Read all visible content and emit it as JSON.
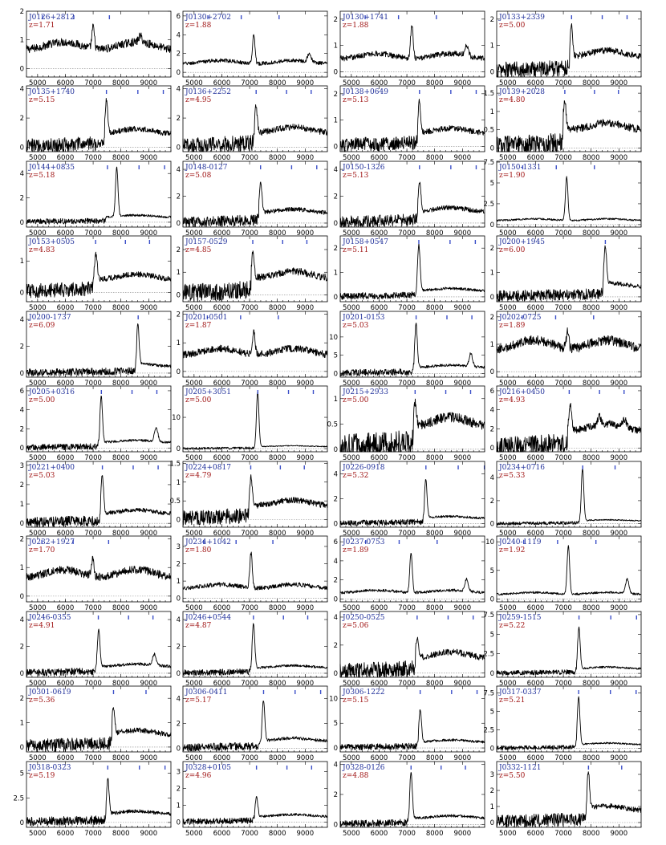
{
  "chart_data": {
    "type": "line",
    "xlim": [
      4600,
      9800
    ],
    "x_ticks": [
      5000,
      6000,
      7000,
      8000,
      9000
    ],
    "grid": false,
    "line_color": "#000000",
    "zero_line": "dotted",
    "colors": {
      "name": "#1f2f9a",
      "redshift": "#a01515",
      "line_markers": "#3b4fc8"
    },
    "panels": [
      {
        "name": "J0126+2812",
        "z": "z=1.71",
        "zval": 1.71,
        "ylim": [
          -0.3,
          2.0
        ],
        "yticks": [
          0,
          1,
          2
        ],
        "emission": [
          7000,
          8700
        ],
        "peak": 1.55,
        "cont": 0.8
      },
      {
        "name": "J0130+2702",
        "z": "z=1.88",
        "zval": 1.88,
        "ylim": [
          -0.5,
          6.5
        ],
        "yticks": [
          0,
          2,
          4,
          6
        ],
        "emission": [
          7150,
          9150
        ],
        "peak": 4.2,
        "cont": 1.1
      },
      {
        "name": "J0130+1741",
        "z": "z=1.88",
        "zval": 1.88,
        "ylim": [
          -0.2,
          2.3
        ],
        "yticks": [
          0,
          1,
          2
        ],
        "emission": [
          7180,
          9150
        ],
        "peak": 1.9,
        "cont": 0.6
      },
      {
        "name": "J0133+2339",
        "z": "z=5.00",
        "zval": 5.0,
        "ylim": [
          -0.2,
          2.3
        ],
        "yticks": [
          0,
          1,
          2
        ],
        "emission": [
          7290
        ],
        "peak": 1.9,
        "cont": 0.7
      },
      {
        "name": "J0135+1740",
        "z": "z=5.15",
        "zval": 5.15,
        "ylim": [
          -0.3,
          4.2
        ],
        "yticks": [
          0,
          2,
          4
        ],
        "emission": [
          7480
        ],
        "peak": 3.4,
        "cont": 1.1
      },
      {
        "name": "J0136+2252",
        "z": "z=4.95",
        "zval": 4.95,
        "ylim": [
          -0.3,
          4.2
        ],
        "yticks": [
          0,
          2,
          4
        ],
        "emission": [
          7230
        ],
        "peak": 3.0,
        "cont": 1.2
      },
      {
        "name": "J0138+0649",
        "z": "z=5.13",
        "zval": 5.13,
        "ylim": [
          -0.2,
          2.3
        ],
        "yticks": [
          0,
          1,
          2
        ],
        "emission": [
          7450
        ],
        "peak": 1.8,
        "cont": 0.6
      },
      {
        "name": "J0139+2028",
        "z": "z=4.80",
        "zval": 4.8,
        "ylim": [
          -0.1,
          1.7
        ],
        "yticks": [
          0.0,
          0.5,
          1.0,
          1.5
        ],
        "emission": [
          7050
        ],
        "peak": 1.4,
        "cont": 0.6
      },
      {
        "name": "J0144+0835",
        "z": "z=5.18",
        "zval": 5.18,
        "ylim": [
          -0.4,
          5.0
        ],
        "yticks": [
          0,
          2,
          4
        ],
        "emission": [
          7850
        ],
        "peak": 4.5,
        "cont": 0.5
      },
      {
        "name": "J0148-0127",
        "z": "z=5.08",
        "zval": 5.08,
        "ylim": [
          -0.3,
          4.6
        ],
        "yticks": [
          0,
          2,
          4
        ],
        "emission": [
          7400
        ],
        "peak": 3.2,
        "cont": 0.9
      },
      {
        "name": "J0150-1326",
        "z": "z=5.13",
        "zval": 5.13,
        "ylim": [
          -0.3,
          4.6
        ],
        "yticks": [
          0,
          2,
          4
        ],
        "emission": [
          7460
        ],
        "peak": 3.2,
        "cont": 1.0
      },
      {
        "name": "J0150-1331",
        "z": "z=1.90",
        "zval": 1.9,
        "ylim": [
          -0.3,
          7.6
        ],
        "yticks": [
          0.0,
          2.5,
          5.0,
          7.5
        ],
        "emission": [
          7120
        ],
        "peak": 5.8,
        "cont": 0.6
      },
      {
        "name": "J0153+0505",
        "z": "z=4.83",
        "zval": 4.83,
        "ylim": [
          -0.3,
          1.8
        ],
        "yticks": [
          0,
          1
        ],
        "emission": [
          7100
        ],
        "peak": 1.3,
        "cont": 0.5
      },
      {
        "name": "J0157-0529",
        "z": "z=4.85",
        "zval": 4.85,
        "ylim": [
          -0.3,
          2.6
        ],
        "yticks": [
          0,
          1,
          2
        ],
        "emission": [
          7120
        ],
        "peak": 2.0,
        "cont": 0.9
      },
      {
        "name": "J0158+0547",
        "z": "z=5.11",
        "zval": 5.11,
        "ylim": [
          -0.2,
          2.5
        ],
        "yticks": [
          0,
          1,
          2
        ],
        "emission": [
          7430
        ],
        "peak": 2.2,
        "cont": 0.3
      },
      {
        "name": "J0200+1945",
        "z": "z=6.00",
        "zval": 6.0,
        "ylim": [
          -0.2,
          2.5
        ],
        "yticks": [
          0,
          1,
          2
        ],
        "emission": [
          8510
        ],
        "peak": 2.0,
        "cont": 0.5
      },
      {
        "name": "J0200-1737",
        "z": "z=6.09",
        "zval": 6.09,
        "ylim": [
          -0.3,
          4.6
        ],
        "yticks": [
          0,
          2,
          4
        ],
        "emission": [
          8610
        ],
        "peak": 3.5,
        "cont": 0.6
      },
      {
        "name": "J0201-0501",
        "z": "z=1.87",
        "zval": 1.87,
        "ylim": [
          -0.2,
          2.1
        ],
        "yticks": [
          0,
          1,
          2
        ],
        "emission": [
          7150
        ],
        "peak": 1.5,
        "cont": 0.7
      },
      {
        "name": "J0201-0153",
        "z": "z=5.03",
        "zval": 5.03,
        "ylim": [
          -1,
          17
        ],
        "yticks": [
          0,
          5,
          10
        ],
        "emission": [
          7330,
          9300
        ],
        "peak": 14.0,
        "cont": 2.0
      },
      {
        "name": "J0202-0725",
        "z": "z=1.89",
        "zval": 1.89,
        "ylim": [
          -0.2,
          2.2
        ],
        "yticks": [
          0,
          1,
          2
        ],
        "emission": [
          7150
        ],
        "peak": 1.6,
        "cont": 1.0
      },
      {
        "name": "J0205+0316",
        "z": "z=5.00",
        "zval": 5.0,
        "ylim": [
          -0.4,
          6.5
        ],
        "yticks": [
          0,
          2,
          4,
          6
        ],
        "emission": [
          7290,
          9270
        ],
        "peak": 5.5,
        "cont": 0.7
      },
      {
        "name": "J0205+3051",
        "z": "z=5.00",
        "zval": 5.0,
        "ylim": [
          -1,
          20
        ],
        "yticks": [
          0,
          10
        ],
        "emission": [
          7290
        ],
        "peak": 18,
        "cont": 0.8
      },
      {
        "name": "J0215+2933",
        "z": "z=5.00",
        "zval": 5.0,
        "ylim": [
          -0.05,
          1.25
        ],
        "yticks": [
          0.0,
          0.5,
          1.0
        ],
        "emission": [
          7300
        ],
        "peak": 1.0,
        "cont": 0.55
      },
      {
        "name": "J0216+0450",
        "z": "z=4.93",
        "zval": 4.93,
        "ylim": [
          -0.4,
          6.5
        ],
        "yticks": [
          0,
          2,
          4,
          6
        ],
        "emission": [
          7250,
          8300,
          9200
        ],
        "peak": 5.0,
        "cont": 2.2
      },
      {
        "name": "J0221+0400",
        "z": "z=5.03",
        "zval": 5.03,
        "ylim": [
          -0.2,
          3.2
        ],
        "yticks": [
          0,
          1,
          2,
          3
        ],
        "emission": [
          7330
        ],
        "peak": 2.6,
        "cont": 0.6
      },
      {
        "name": "J0224+0817",
        "z": "z=4.79",
        "zval": 4.79,
        "ylim": [
          -0.2,
          1.55
        ],
        "yticks": [
          0.0,
          0.5,
          1.0,
          1.5
        ],
        "emission": [
          7050
        ],
        "peak": 1.2,
        "cont": 0.45
      },
      {
        "name": "J0226-0918",
        "z": "z=5.32",
        "zval": 5.32,
        "ylim": [
          -0.3,
          5.0
        ],
        "yticks": [
          0,
          2,
          4
        ],
        "emission": [
          7680
        ],
        "peak": 3.6,
        "cont": 0.5
      },
      {
        "name": "J0234+0716",
        "z": "z=5.33",
        "zval": 5.33,
        "ylim": [
          -0.3,
          5.4
        ],
        "yticks": [
          0,
          2,
          4
        ],
        "emission": [
          7690
        ],
        "peak": 4.8,
        "cont": 0.3
      },
      {
        "name": "J0232+1927",
        "z": "z=1.70",
        "zval": 1.7,
        "ylim": [
          -0.2,
          2.1
        ],
        "yticks": [
          0,
          1,
          2
        ],
        "emission": [
          6980
        ],
        "peak": 1.4,
        "cont": 0.8
      },
      {
        "name": "J0234+1042",
        "z": "z=1.80",
        "zval": 1.8,
        "ylim": [
          -0.2,
          3.6
        ],
        "yticks": [
          0,
          1,
          2,
          3
        ],
        "emission": [
          7050
        ],
        "peak": 2.7,
        "cont": 0.7
      },
      {
        "name": "J0237-0753",
        "z": "z=1.89",
        "zval": 1.89,
        "ylim": [
          -0.3,
          6.6
        ],
        "yticks": [
          0,
          2,
          4,
          6
        ],
        "emission": [
          7150,
          9150
        ],
        "peak": 5.0,
        "cont": 0.8
      },
      {
        "name": "J0240-1119",
        "z": "z=1.92",
        "zval": 1.92,
        "ylim": [
          -0.5,
          11
        ],
        "yticks": [
          0,
          5,
          10
        ],
        "emission": [
          7180,
          9300
        ],
        "peak": 9.5,
        "cont": 1.0
      },
      {
        "name": "J0246-0355",
        "z": "z=4.91",
        "zval": 4.91,
        "ylim": [
          -0.3,
          4.6
        ],
        "yticks": [
          0,
          2,
          4
        ],
        "emission": [
          7200,
          9200
        ],
        "peak": 3.3,
        "cont": 0.6
      },
      {
        "name": "J0246+0544",
        "z": "z=4.87",
        "zval": 4.87,
        "ylim": [
          -0.3,
          4.6
        ],
        "yticks": [
          0,
          2,
          4
        ],
        "emission": [
          7140
        ],
        "peak": 3.8,
        "cont": 0.5
      },
      {
        "name": "J0250-0525",
        "z": "z=5.06",
        "zval": 5.06,
        "ylim": [
          -0.3,
          4.4
        ],
        "yticks": [
          0,
          2,
          4
        ],
        "emission": [
          7370
        ],
        "peak": 2.7,
        "cont": 1.3
      },
      {
        "name": "J0259-1515",
        "z": "z=5.22",
        "zval": 5.22,
        "ylim": [
          -0.5,
          7.9
        ],
        "yticks": [
          0.0,
          2.5,
          5.0,
          7.5
        ],
        "emission": [
          7560
        ],
        "peak": 6.0,
        "cont": 0.7
      },
      {
        "name": "J0301-0619",
        "z": "z=5.36",
        "zval": 5.36,
        "ylim": [
          -0.2,
          2.5
        ],
        "yticks": [
          0,
          1,
          2
        ],
        "emission": [
          7730
        ],
        "peak": 1.7,
        "cont": 0.6
      },
      {
        "name": "J0306-0411",
        "z": "z=5.17",
        "zval": 5.17,
        "ylim": [
          -0.3,
          5.0
        ],
        "yticks": [
          0,
          2,
          4
        ],
        "emission": [
          7500
        ],
        "peak": 4.0,
        "cont": 0.7
      },
      {
        "name": "J0306-1222",
        "z": "z=5.15",
        "zval": 5.15,
        "ylim": [
          -0.8,
          12.5
        ],
        "yticks": [
          0,
          5,
          10
        ],
        "emission": [
          7480
        ],
        "peak": 8.0,
        "cont": 1.4
      },
      {
        "name": "J0317-0337",
        "z": "z=5.21",
        "zval": 5.21,
        "ylim": [
          -0.5,
          8.4
        ],
        "yticks": [
          0.0,
          2.5,
          5.0,
          7.5
        ],
        "emission": [
          7550
        ],
        "peak": 7.0,
        "cont": 0.6
      },
      {
        "name": "J0318-0323",
        "z": "z=5.19",
        "zval": 5.19,
        "ylim": [
          -0.5,
          6.2
        ],
        "yticks": [
          0.0,
          2.5,
          5.0
        ],
        "emission": [
          7530
        ],
        "peak": 4.5,
        "cont": 1.0
      },
      {
        "name": "J0328+0105",
        "z": "z=4.96",
        "zval": 4.96,
        "ylim": [
          -0.3,
          3.6
        ],
        "yticks": [
          0,
          1,
          2,
          3
        ],
        "emission": [
          7250
        ],
        "peak": 1.6,
        "cont": 0.4
      },
      {
        "name": "J0328-0126",
        "z": "z=4.88",
        "zval": 4.88,
        "ylim": [
          -0.2,
          4.2
        ],
        "yticks": [
          0,
          2,
          4
        ],
        "emission": [
          7150
        ],
        "peak": 3.6,
        "cont": 0.5
      },
      {
        "name": "J0332-1121",
        "z": "z=5.50",
        "zval": 5.5,
        "ylim": [
          -0.3,
          3.8
        ],
        "yticks": [
          0,
          1,
          2,
          3
        ],
        "emission": [
          7900
        ],
        "peak": 3.2,
        "cont": 0.9
      }
    ]
  }
}
